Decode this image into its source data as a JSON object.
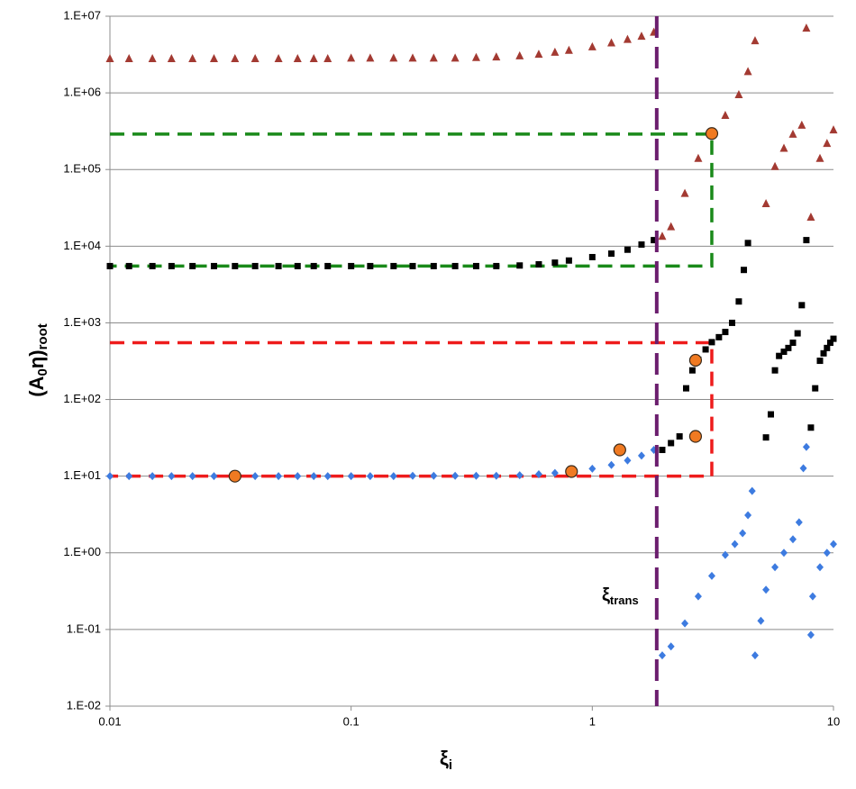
{
  "chart_data": {
    "type": "scatter",
    "xlog": true,
    "ylog": true,
    "grid": true,
    "xlim": [
      0.01,
      10
    ],
    "xticks": [
      0.01,
      0.1,
      1,
      10
    ],
    "ylim": [
      0.01,
      10000000
    ],
    "yticks": [
      {
        "value": 10000000,
        "label": "1.E+07"
      },
      {
        "value": 1000000,
        "label": "1.E+06"
      },
      {
        "value": 100000,
        "label": "1.E+05"
      },
      {
        "value": 10000,
        "label": "1.E+04"
      },
      {
        "value": 1000,
        "label": "1.E+03"
      },
      {
        "value": 100,
        "label": "1.E+02"
      },
      {
        "value": 10,
        "label": "1.E+01"
      },
      {
        "value": 1,
        "label": "1.E+00"
      },
      {
        "value": 0.1,
        "label": "1.E-01"
      },
      {
        "value": 0.01,
        "label": "1.E-02"
      }
    ],
    "x_label": {
      "main": "ξ",
      "sub": "i"
    },
    "y_label": {
      "open": "(A",
      "sub1": "0",
      "mid": "η)",
      "sub2": "root"
    },
    "annotation": {
      "main": "ξ",
      "sub": "trans"
    },
    "reference_lines": [
      {
        "color": "#1a8a1a",
        "x": [
          0.01,
          3.13,
          3.13,
          0.01
        ],
        "values": [
          290000,
          290000,
          5500,
          5500
        ]
      },
      {
        "color": "#ee1c1c",
        "x": [
          0.01,
          3.13,
          3.13,
          0.01
        ],
        "values": [
          550,
          550,
          10,
          10
        ]
      },
      {
        "color": "#6b1e6e",
        "x": [
          1.85,
          1.85
        ],
        "values": [
          10000000,
          0.01
        ]
      }
    ],
    "series": [
      {
        "color": "#a33a32",
        "marker": "triangle",
        "x": [
          0.01,
          0.012,
          0.015,
          0.018,
          0.022,
          0.027,
          0.033,
          0.04,
          0.05,
          0.06,
          0.07,
          0.08,
          0.1,
          0.12,
          0.15,
          0.18,
          0.22,
          0.27,
          0.33,
          0.4,
          0.5,
          0.6,
          0.7,
          0.8,
          1,
          1.2,
          1.4,
          1.6,
          1.8,
          1.95,
          2.12,
          2.42,
          2.75,
          3.13,
          3.56,
          4.05,
          4.42,
          4.73,
          5.25,
          5.72,
          6.23,
          6.79,
          7.39,
          7.72,
          8.06,
          8.79,
          9.4,
          10
        ],
        "values": [
          2800000,
          2800000,
          2800000,
          2800000,
          2800000,
          2800000,
          2800000,
          2800000,
          2800000,
          2800000,
          2800000,
          2800000,
          2850000,
          2850000,
          2850000,
          2850000,
          2850000,
          2850000,
          2900000,
          2950000,
          3050000,
          3200000,
          3400000,
          3600000,
          4000000,
          4500000,
          5000000,
          5500000,
          6200000,
          13500,
          18000,
          49000,
          140000,
          300000,
          510000,
          950000,
          1900000,
          4800000,
          36000,
          110000,
          190000,
          290000,
          380000,
          7000000,
          24000,
          140000,
          220000,
          330000
        ]
      },
      {
        "color": "#000000",
        "marker": "square",
        "x": [
          0.01,
          0.012,
          0.015,
          0.018,
          0.022,
          0.027,
          0.033,
          0.04,
          0.05,
          0.06,
          0.07,
          0.08,
          0.1,
          0.12,
          0.15,
          0.18,
          0.22,
          0.27,
          0.33,
          0.4,
          0.5,
          0.6,
          0.7,
          0.8,
          1,
          1.2,
          1.4,
          1.6,
          1.8,
          1.95,
          2.12,
          2.3,
          2.45,
          2.6,
          2.75,
          2.95,
          3.13,
          3.35,
          3.56,
          3.8,
          4.05,
          4.25,
          4.42,
          5.25,
          5.5,
          5.72,
          5.95,
          6.23,
          6.5,
          6.79,
          7.1,
          7.39,
          7.72,
          8.06,
          8.4,
          8.79,
          9.1,
          9.4,
          9.7,
          10
        ],
        "values": [
          5500,
          5500,
          5500,
          5500,
          5500,
          5500,
          5500,
          5500,
          5500,
          5500,
          5500,
          5500,
          5500,
          5500,
          5500,
          5500,
          5500,
          5500,
          5500,
          5500,
          5600,
          5800,
          6100,
          6500,
          7200,
          8000,
          9000,
          10500,
          12000,
          22,
          27,
          33,
          140,
          240,
          330,
          450,
          560,
          650,
          760,
          1000,
          1900,
          4900,
          11000,
          32,
          64,
          240,
          370,
          420,
          470,
          550,
          730,
          1700,
          12000,
          43,
          140,
          320,
          400,
          470,
          550,
          620
        ]
      },
      {
        "color": "#3d7be0",
        "marker": "diamond",
        "x": [
          0.01,
          0.012,
          0.015,
          0.018,
          0.022,
          0.027,
          0.033,
          0.04,
          0.05,
          0.06,
          0.07,
          0.08,
          0.1,
          0.12,
          0.15,
          0.18,
          0.22,
          0.27,
          0.33,
          0.4,
          0.5,
          0.6,
          0.7,
          0.8,
          1,
          1.2,
          1.4,
          1.6,
          1.8,
          1.95,
          2.12,
          2.42,
          2.75,
          3.13,
          3.56,
          3.9,
          4.2,
          4.42,
          4.6,
          4.73,
          5.0,
          5.25,
          5.72,
          6.23,
          6.79,
          7.2,
          7.5,
          7.72,
          8.06,
          8.2,
          8.79,
          9.4,
          10
        ],
        "values": [
          10,
          10,
          10,
          10,
          10,
          10,
          10,
          10,
          10,
          10,
          10,
          10,
          10,
          10,
          10,
          10.1,
          10.1,
          10.1,
          10.1,
          10.1,
          10.3,
          10.6,
          11,
          11.6,
          12.5,
          14,
          16,
          18.5,
          22,
          0.046,
          0.06,
          0.12,
          0.27,
          0.5,
          0.94,
          1.3,
          1.8,
          3.1,
          6.4,
          0.046,
          0.13,
          0.33,
          0.65,
          1,
          1.5,
          2.5,
          12.7,
          24,
          0.085,
          0.27,
          0.65,
          1,
          1.3
        ]
      },
      {
        "color": "#f07a22",
        "marker": "circle",
        "x": [
          0.033,
          0.82,
          1.3,
          2.68,
          2.68,
          3.13
        ],
        "values": [
          10,
          11.5,
          22,
          33,
          325,
          295000
        ]
      }
    ]
  }
}
